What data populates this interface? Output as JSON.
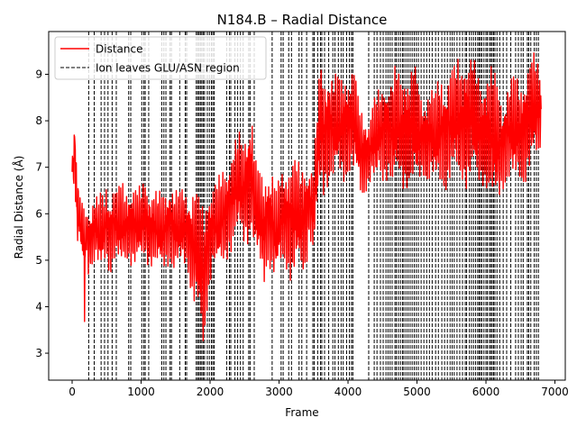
{
  "chart_data": {
    "type": "line",
    "title": "N184.B – Radial Distance",
    "xlabel": "Frame",
    "ylabel": "Radial Distance (Å)",
    "xlim": [
      -340,
      7150
    ],
    "ylim": [
      2.42,
      9.92
    ],
    "xticks": [
      0,
      1000,
      2000,
      3000,
      4000,
      5000,
      6000,
      7000
    ],
    "yticks": [
      3,
      4,
      5,
      6,
      7,
      8,
      9
    ],
    "grid": false,
    "legend_position": "upper-left",
    "legend": [
      {
        "label": "Distance",
        "style": "solid",
        "color": "#ff0000"
      },
      {
        "label": "Ion leaves GLU/ASN region",
        "style": "dashed",
        "color": "#000000"
      }
    ],
    "series": [
      {
        "name": "Distance",
        "color": "#ff0000",
        "x": [
          0,
          20,
          40,
          60,
          80,
          100,
          120,
          140,
          160,
          180,
          200,
          220,
          240,
          260,
          280,
          300,
          340,
          380,
          420,
          460,
          500,
          540,
          580,
          620,
          660,
          700,
          760,
          820,
          880,
          940,
          1000,
          1060,
          1120,
          1180,
          1240,
          1300,
          1360,
          1420,
          1480,
          1540,
          1600,
          1660,
          1700,
          1750,
          1800,
          1840,
          1880,
          1900,
          1920,
          1960,
          2000,
          2060,
          2120,
          2180,
          2240,
          2300,
          2360,
          2420,
          2480,
          2540,
          2600,
          2660,
          2720,
          2780,
          2840,
          2900,
          2960,
          3020,
          3080,
          3140,
          3200,
          3260,
          3320,
          3380,
          3440,
          3500,
          3560,
          3600,
          3640,
          3680,
          3720,
          3760,
          3800,
          3850,
          3900,
          3950,
          4000,
          4050,
          4100,
          4150,
          4200,
          4250,
          4300,
          4350,
          4400,
          4450,
          4500,
          4550,
          4600,
          4650,
          4700,
          4750,
          4800,
          4850,
          4900,
          4950,
          5000,
          5050,
          5100,
          5150,
          5200,
          5250,
          5300,
          5350,
          5400,
          5450,
          5500,
          5550,
          5600,
          5650,
          5700,
          5750,
          5800,
          5850,
          5900,
          5950,
          6000,
          6050,
          6100,
          6150,
          6200,
          6250,
          6300,
          6350,
          6400,
          6450,
          6500,
          6550,
          6600,
          6650,
          6700,
          6750,
          6800
        ],
        "upper": [
          7.4,
          7.6,
          8.25,
          7.2,
          7.0,
          6.5,
          6.3,
          6.4,
          6.2,
          6.3,
          6.0,
          6.2,
          6.3,
          6.0,
          6.2,
          6.4,
          6.5,
          6.3,
          6.6,
          6.3,
          6.7,
          6.4,
          6.6,
          6.7,
          6.5,
          6.8,
          6.6,
          6.5,
          6.7,
          6.6,
          6.6,
          6.8,
          6.5,
          6.6,
          6.5,
          6.5,
          6.5,
          6.7,
          6.6,
          6.5,
          6.6,
          6.5,
          6.5,
          6.6,
          6.6,
          6.4,
          6.5,
          6.0,
          6.2,
          6.6,
          6.6,
          6.7,
          6.8,
          7.0,
          7.1,
          7.3,
          7.6,
          7.8,
          7.6,
          8.0,
          8.3,
          7.2,
          7.0,
          6.8,
          7.0,
          7.0,
          6.6,
          6.9,
          7.0,
          7.2,
          7.3,
          7.2,
          7.0,
          7.2,
          7.0,
          7.1,
          8.4,
          9.5,
          9.0,
          9.1,
          9.2,
          9.0,
          9.0,
          9.1,
          9.0,
          9.2,
          9.0,
          9.1,
          9.2,
          8.5,
          8.3,
          8.2,
          8.0,
          8.4,
          8.6,
          8.7,
          8.8,
          9.0,
          8.8,
          9.0,
          9.3,
          9.0,
          9.1,
          9.2,
          9.0,
          9.4,
          9.0,
          8.6,
          8.5,
          8.7,
          8.8,
          8.6,
          8.9,
          9.0,
          8.9,
          9.0,
          9.3,
          9.2,
          9.4,
          9.3,
          9.6,
          9.4,
          9.5,
          9.2,
          9.0,
          8.8,
          9.1,
          9.3,
          9.2,
          9.0,
          8.6,
          8.4,
          8.8,
          8.9,
          9.1,
          9.0,
          8.8,
          9.1,
          9.2,
          9.4,
          9.5,
          9.3,
          9.2
        ],
        "lower": [
          6.4,
          6.4,
          6.9,
          5.3,
          5.2,
          5.4,
          5.1,
          5.0,
          4.8,
          3.4,
          5.1,
          4.9,
          4.6,
          4.8,
          4.9,
          4.8,
          5.0,
          4.8,
          4.6,
          4.9,
          5.0,
          4.6,
          4.8,
          5.0,
          4.9,
          4.7,
          4.9,
          5.0,
          4.8,
          4.9,
          4.9,
          5.0,
          4.8,
          4.9,
          4.8,
          4.7,
          4.8,
          4.9,
          4.7,
          4.8,
          4.8,
          4.9,
          4.5,
          4.0,
          3.9,
          3.5,
          3.4,
          2.75,
          3.3,
          3.9,
          4.5,
          4.9,
          4.7,
          4.8,
          5.0,
          5.1,
          5.4,
          5.5,
          5.3,
          5.3,
          5.6,
          5.0,
          4.8,
          4.4,
          4.9,
          4.6,
          4.5,
          4.8,
          4.9,
          4.6,
          4.4,
          4.8,
          4.7,
          4.6,
          5.5,
          5.0,
          6.1,
          6.5,
          6.3,
          6.5,
          6.6,
          6.7,
          6.6,
          6.8,
          6.7,
          6.6,
          6.8,
          6.9,
          6.7,
          6.5,
          6.2,
          6.4,
          6.6,
          6.7,
          6.5,
          6.8,
          6.6,
          6.7,
          6.8,
          6.4,
          6.6,
          6.7,
          6.5,
          6.5,
          6.6,
          6.5,
          6.4,
          6.7,
          6.8,
          6.6,
          6.7,
          6.6,
          6.5,
          6.6,
          6.4,
          6.6,
          6.7,
          6.8,
          6.6,
          6.7,
          6.5,
          6.6,
          6.8,
          6.6,
          6.5,
          6.6,
          6.5,
          6.4,
          6.1,
          6.0,
          6.3,
          6.5,
          6.6,
          6.7,
          6.5,
          6.6,
          6.7,
          6.5,
          6.8,
          6.9,
          7.0,
          7.1,
          7.3
        ]
      }
    ],
    "event_frames": [
      240,
      320,
      420,
      470,
      520,
      580,
      640,
      820,
      850,
      1010,
      1040,
      1060,
      1110,
      1300,
      1330,
      1360,
      1420,
      1440,
      1560,
      1640,
      1660,
      1800,
      1820,
      1840,
      1860,
      1880,
      1900,
      1920,
      1960,
      1990,
      2020,
      2040,
      2060,
      2240,
      2280,
      2300,
      2360,
      2400,
      2440,
      2480,
      2560,
      2580,
      2640,
      2900,
      3030,
      3060,
      3140,
      3180,
      3290,
      3330,
      3400,
      3490,
      3510,
      3560,
      3600,
      3620,
      3660,
      3720,
      3780,
      3810,
      3860,
      3900,
      3930,
      3980,
      4020,
      4050,
      4070,
      4300,
      4380,
      4420,
      4470,
      4510,
      4550,
      4580,
      4610,
      4640,
      4680,
      4700,
      4730,
      4760,
      4790,
      4810,
      4840,
      4870,
      4900,
      4930,
      4960,
      4990,
      5020,
      5060,
      5100,
      5140,
      5180,
      5220,
      5270,
      5310,
      5360,
      5400,
      5440,
      5480,
      5510,
      5540,
      5580,
      5620,
      5660,
      5700,
      5720,
      5760,
      5790,
      5820,
      5850,
      5880,
      5900,
      5920,
      5940,
      5970,
      6000,
      6020,
      6050,
      6070,
      6090,
      6110,
      6130,
      6160,
      6200,
      6250,
      6300,
      6360,
      6430,
      6470,
      6510,
      6540,
      6600,
      6620,
      6650,
      6700,
      6730,
      6760
    ]
  }
}
